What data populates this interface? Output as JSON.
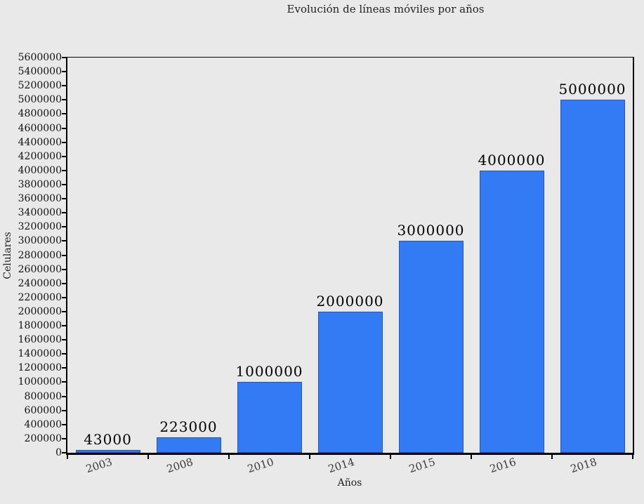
{
  "chart_data": {
    "type": "bar",
    "title": "Evolución de líneas móviles por años",
    "xlabel": "Años",
    "ylabel": "Celulares",
    "categories": [
      "2003",
      "2008",
      "2010",
      "2014",
      "2015",
      "2016",
      "2018"
    ],
    "values": [
      43000,
      223000,
      1000000,
      2000000,
      3000000,
      4000000,
      5000000
    ],
    "value_labels": [
      "43000",
      "223000",
      "1000000",
      "2000000",
      "3000000",
      "4000000",
      "5000000"
    ],
    "ylim": [
      0,
      5600000
    ],
    "ytick_step": 200000,
    "yticks": [
      0,
      200000,
      400000,
      600000,
      800000,
      1000000,
      1200000,
      1400000,
      1600000,
      1800000,
      2000000,
      2200000,
      2400000,
      2600000,
      2800000,
      3000000,
      3200000,
      3400000,
      3600000,
      3800000,
      4000000,
      4200000,
      4400000,
      4600000,
      4800000,
      5000000,
      5200000,
      5400000,
      5600000
    ],
    "grid": false,
    "legend": false,
    "bar_color": "#337af5",
    "bar_edge_color": "#2353c4",
    "background_color": "#e9e9e9",
    "axis_color": "#000000"
  }
}
